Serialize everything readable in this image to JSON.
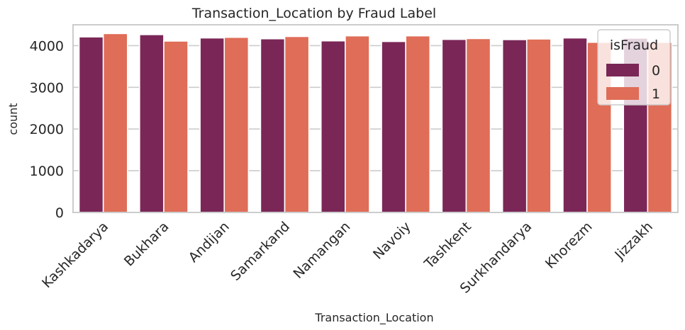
{
  "chart_data": {
    "type": "bar",
    "title": "Transaction_Location by Fraud Label",
    "xlabel": "Transaction_Location",
    "ylabel": "count",
    "categories": [
      "Kashkadarya",
      "Bukhara",
      "Andijan",
      "Samarkand",
      "Namangan",
      "Navoiy",
      "Tashkent",
      "Surkhandarya",
      "Khorezm",
      "Jizzakh"
    ],
    "series": [
      {
        "name": "0",
        "color": "#7a2757",
        "values": [
          4210,
          4265,
          4185,
          4165,
          4115,
          4100,
          4150,
          4145,
          4185,
          4180
        ]
      },
      {
        "name": "1",
        "color": "#df6d57",
        "values": [
          4290,
          4110,
          4200,
          4220,
          4235,
          4235,
          4170,
          4160,
          4080,
          4080
        ]
      }
    ],
    "yticks": [
      0,
      1000,
      2000,
      3000,
      4000
    ],
    "ylim": [
      0,
      4500
    ],
    "grid": true,
    "legend": {
      "title": "isFraud",
      "placement": "top-right"
    }
  }
}
